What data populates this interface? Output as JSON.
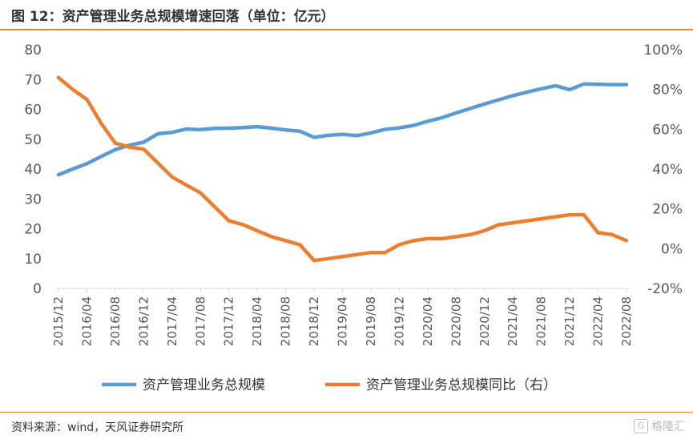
{
  "header": {
    "title": "图 12：资产管理业务总规模增速回落（单位：亿元）"
  },
  "footer": {
    "source": "资料来源：wind，天风证券研究所",
    "watermark": "格隆汇"
  },
  "colors": {
    "accent": "#E8833A",
    "series1": "#5B9BD5",
    "series2": "#ED7D31"
  },
  "chart_data": {
    "type": "line",
    "x": [
      "2015/12",
      "2016/02",
      "2016/04",
      "2016/06",
      "2016/08",
      "2016/10",
      "2016/12",
      "2017/02",
      "2017/04",
      "2017/06",
      "2017/08",
      "2017/10",
      "2017/12",
      "2018/02",
      "2018/04",
      "2018/06",
      "2018/08",
      "2018/10",
      "2018/12",
      "2019/02",
      "2019/04",
      "2019/06",
      "2019/08",
      "2019/10",
      "2019/12",
      "2020/02",
      "2020/04",
      "2020/06",
      "2020/08",
      "2020/10",
      "2020/12",
      "2021/02",
      "2021/04",
      "2021/06",
      "2021/08",
      "2021/10",
      "2021/12",
      "2022/02",
      "2022/04",
      "2022/06",
      "2022/08"
    ],
    "x_tick_labels": [
      "2015/12",
      "2016/04",
      "2016/08",
      "2016/12",
      "2017/04",
      "2017/08",
      "2017/12",
      "2018/04",
      "2018/08",
      "2018/12",
      "2019/04",
      "2019/08",
      "2019/12",
      "2020/04",
      "2020/08",
      "2020/12",
      "2021/04",
      "2021/08",
      "2021/12",
      "2022/04",
      "2022/08"
    ],
    "series": [
      {
        "name": "资产管理业务总规模",
        "axis": "left",
        "values": [
          38.1,
          40.0,
          41.8,
          44.2,
          46.5,
          48.0,
          49.0,
          51.8,
          52.3,
          53.4,
          53.2,
          53.6,
          53.7,
          53.9,
          54.2,
          53.7,
          53.1,
          52.7,
          50.6,
          51.3,
          51.6,
          51.2,
          52.1,
          53.3,
          53.8,
          54.6,
          56.0,
          57.2,
          58.8,
          60.3,
          61.8,
          63.2,
          64.6,
          65.8,
          66.9,
          67.9,
          66.6,
          68.5,
          68.4,
          68.3,
          68.3
        ]
      },
      {
        "name": "资产管理业务总规模同比（右）",
        "axis": "right",
        "values": [
          86,
          80,
          75,
          63,
          53,
          51,
          50,
          43,
          36,
          32,
          28,
          21,
          14,
          12,
          9,
          6,
          4,
          2,
          -6,
          -5,
          -4,
          -3,
          -2,
          -2,
          2,
          4,
          5,
          5,
          6,
          7,
          9,
          12,
          13,
          14,
          15,
          16,
          17,
          17,
          8,
          7,
          4
        ]
      }
    ],
    "y_left": {
      "ticks": [
        "0",
        "10",
        "20",
        "30",
        "40",
        "50",
        "60",
        "70",
        "80"
      ],
      "range": [
        0,
        80
      ]
    },
    "y_right": {
      "ticks": [
        "-20%",
        "0%",
        "20%",
        "40%",
        "60%",
        "80%",
        "100%"
      ],
      "range": [
        -20,
        100
      ]
    },
    "grid": false,
    "legend_position": "bottom"
  }
}
